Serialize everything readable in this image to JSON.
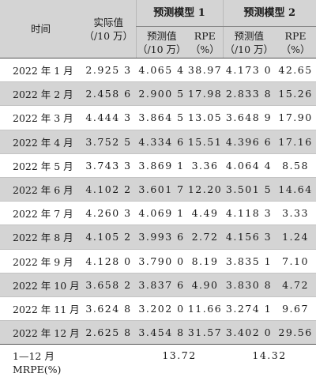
{
  "headers": {
    "time": "时间",
    "actual_line1": "实际值",
    "actual_line2": "（/10 万）",
    "model1": "预测模型 1",
    "model2": "预测模型 2",
    "pred_line1": "预测值",
    "pred_line2": "（/10 万）",
    "rpe_line1": "RPE",
    "rpe_line2": "（%）"
  },
  "rows": [
    {
      "month": "2022 年 1 月",
      "actual": "2.925 3",
      "m1_pred": "4.065 4",
      "m1_rpe": "38.97",
      "m2_pred": "4.173 0",
      "m2_rpe": "42.65"
    },
    {
      "month": "2022 年 2 月",
      "actual": "2.458 6",
      "m1_pred": "2.900 5",
      "m1_rpe": "17.98",
      "m2_pred": "2.833 8",
      "m2_rpe": "15.26"
    },
    {
      "month": "2022 年 3 月",
      "actual": "4.444 3",
      "m1_pred": "3.864 5",
      "m1_rpe": "13.05",
      "m2_pred": "3.648 9",
      "m2_rpe": "17.90"
    },
    {
      "month": "2022 年 4 月",
      "actual": "3.752 5",
      "m1_pred": "4.334 6",
      "m1_rpe": "15.51",
      "m2_pred": "4.396 6",
      "m2_rpe": "17.16"
    },
    {
      "month": "2022 年 5 月",
      "actual": "3.743 3",
      "m1_pred": "3.869 1",
      "m1_rpe": "3.36",
      "m2_pred": "4.064 4",
      "m2_rpe": "8.58"
    },
    {
      "month": "2022 年 6 月",
      "actual": "4.102 2",
      "m1_pred": "3.601 7",
      "m1_rpe": "12.20",
      "m2_pred": "3.501 5",
      "m2_rpe": "14.64"
    },
    {
      "month": "2022 年 7 月",
      "actual": "4.260 3",
      "m1_pred": "4.069 1",
      "m1_rpe": "4.49",
      "m2_pred": "4.118 3",
      "m2_rpe": "3.33"
    },
    {
      "month": "2022 年 8 月",
      "actual": "4.105 2",
      "m1_pred": "3.993 6",
      "m1_rpe": "2.72",
      "m2_pred": "4.156 3",
      "m2_rpe": "1.24"
    },
    {
      "month": "2022 年 9 月",
      "actual": "4.128 0",
      "m1_pred": "3.790 0",
      "m1_rpe": "8.19",
      "m2_pred": "3.835 1",
      "m2_rpe": "7.10"
    },
    {
      "month": "2022 年 10 月",
      "actual": "3.658 2",
      "m1_pred": "3.837 6",
      "m1_rpe": "4.90",
      "m2_pred": "3.830 8",
      "m2_rpe": "4.72"
    },
    {
      "month": "2022 年 11 月",
      "actual": "3.624 8",
      "m1_pred": "3.202 0",
      "m1_rpe": "11.66",
      "m2_pred": "3.274 1",
      "m2_rpe": "9.67"
    },
    {
      "month": "2022 年 12 月",
      "actual": "2.625 8",
      "m1_pred": "3.454 8",
      "m1_rpe": "31.57",
      "m2_pred": "3.402 0",
      "m2_rpe": "29.56"
    }
  ],
  "footer": {
    "label_line1": "1—12 月",
    "label_line2": "MRPE(%)",
    "m1_mrpe": "13.72",
    "m2_mrpe": "14.32"
  },
  "colors": {
    "header_shade": "#d4d4d4",
    "row_shade": "#d4d4d4",
    "rule": "#555555"
  }
}
